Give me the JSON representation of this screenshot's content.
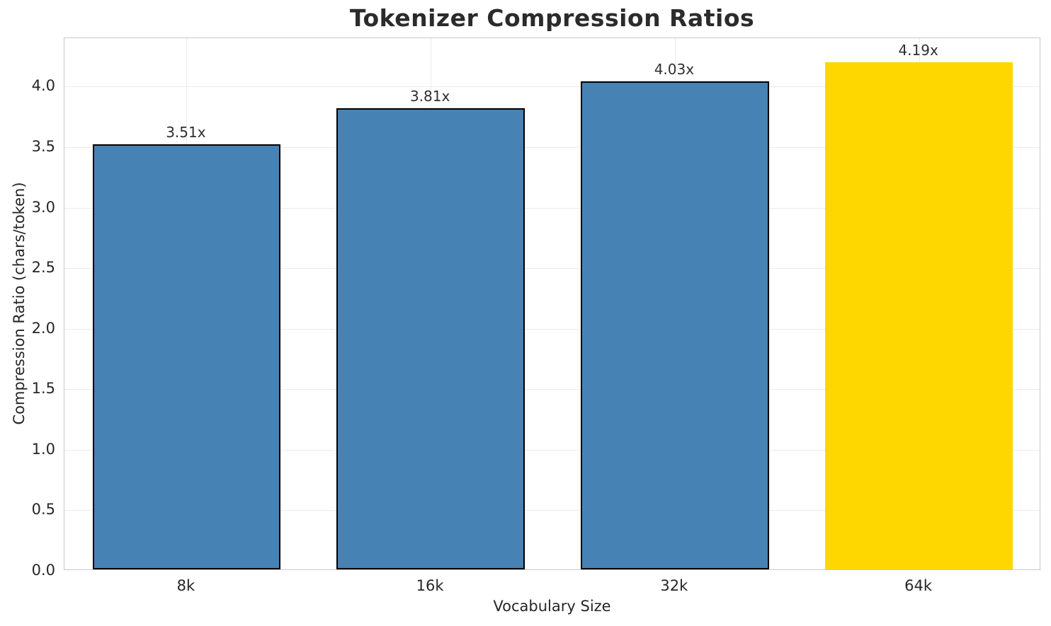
{
  "chart_data": {
    "type": "bar",
    "title": "Tokenizer Compression Ratios",
    "xlabel": "Vocabulary Size",
    "ylabel": "Compression Ratio (chars/token)",
    "categories": [
      "8k",
      "16k",
      "32k",
      "64k"
    ],
    "values": [
      3.51,
      3.81,
      4.03,
      4.19
    ],
    "bar_labels": [
      "3.51x",
      "3.81x",
      "4.03x",
      "4.19x"
    ],
    "bar_colors": [
      "#4682b4",
      "#4682b4",
      "#4682b4",
      "#ffd700"
    ],
    "bar_edge_colors": [
      "#000000",
      "#000000",
      "#000000",
      "none"
    ],
    "bar_width_fraction": 0.77,
    "ylim": [
      0,
      4.4
    ],
    "yticks": [
      0.0,
      0.5,
      1.0,
      1.5,
      2.0,
      2.5,
      3.0,
      3.5,
      4.0
    ],
    "ytick_labels": [
      "0.0",
      "0.5",
      "1.0",
      "1.5",
      "2.0",
      "2.5",
      "3.0",
      "3.5",
      "4.0"
    ],
    "grid": true,
    "grid_axes": "both",
    "legend": "none",
    "colors": {
      "bar_default": "#4682b4",
      "bar_highlight": "#ffd700",
      "bar_edge": "#000000",
      "grid": "#ebebeb",
      "spine": "#c9c9c9",
      "text": "#262626",
      "title_text": "#2b2b2b"
    }
  }
}
